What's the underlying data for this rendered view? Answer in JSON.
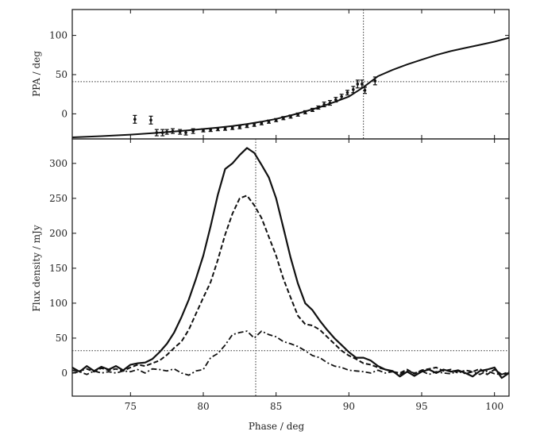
{
  "chart_data": [
    {
      "type": "scatter",
      "panel": "top",
      "xlabel": "",
      "ylabel": "PPA / deg",
      "xlim": [
        71,
        101
      ],
      "ylim": [
        -32,
        133
      ],
      "xticks": [
        75,
        80,
        85,
        90,
        95,
        100
      ],
      "yticks": [
        0,
        50,
        100
      ],
      "ytick_labels": [
        "0",
        "50",
        "100"
      ],
      "hline": 41,
      "vline": 91,
      "curve": {
        "name": "",
        "x": [
          71,
          73,
          75,
          77,
          79,
          81,
          82,
          83,
          84,
          85,
          86,
          87,
          88,
          89,
          90,
          91,
          92,
          93,
          94,
          95,
          96,
          97,
          98,
          99,
          100,
          101
        ],
        "y": [
          -30,
          -28.5,
          -26.5,
          -24,
          -21,
          -17.5,
          -15.5,
          -13,
          -10,
          -6.5,
          -2,
          3,
          8.5,
          15,
          22,
          34,
          48,
          56,
          63,
          69,
          75,
          80,
          84,
          88,
          92,
          97
        ]
      },
      "points": {
        "x": [
          75.3,
          76.4,
          76.8,
          77.2,
          77.5,
          77.9,
          78.4,
          78.8,
          79.3,
          80.0,
          80.5,
          81.0,
          81.5,
          82.0,
          82.5,
          83.0,
          83.5,
          84.0,
          84.5,
          85.0,
          85.5,
          86.0,
          86.5,
          87.0,
          87.5,
          87.9,
          88.3,
          88.7,
          89.1,
          89.5,
          89.9,
          90.3,
          90.6,
          90.9,
          91.1,
          91.8
        ],
        "y": [
          -7,
          -8,
          -24,
          -24,
          -23,
          -22,
          -23,
          -24,
          -22,
          -21,
          -20.5,
          -19.5,
          -19,
          -18,
          -17,
          -15.5,
          -14,
          -12,
          -10,
          -8,
          -5.5,
          -3.5,
          -1,
          2,
          5,
          8,
          12,
          14,
          18,
          22,
          27,
          31,
          38,
          38,
          30,
          42
        ],
        "yerr": [
          5,
          5,
          4,
          4,
          3,
          3,
          3,
          3,
          3,
          2,
          2,
          2,
          2,
          2,
          2,
          2,
          2,
          2,
          2,
          2,
          2,
          2,
          2,
          2,
          2,
          2,
          3,
          3,
          3,
          3,
          3,
          4,
          5,
          5,
          4,
          5
        ]
      }
    },
    {
      "type": "line",
      "panel": "bottom",
      "xlabel": "Phase / deg",
      "ylabel": "Flux density / mJy",
      "xlim": [
        71,
        101
      ],
      "ylim": [
        -33,
        335
      ],
      "xticks": [
        75,
        80,
        85,
        90,
        95,
        100
      ],
      "xtick_labels": [
        "75",
        "80",
        "85",
        "90",
        "95",
        "100"
      ],
      "yticks": [
        0,
        50,
        100,
        150,
        200,
        250,
        300
      ],
      "ytick_labels": [
        "0",
        "50",
        "100",
        "150",
        "200",
        "250",
        "300"
      ],
      "hline": 32,
      "vline": 83.6,
      "x": [
        71.0,
        71.5,
        72.0,
        72.5,
        73.0,
        73.5,
        74.0,
        74.5,
        75.0,
        75.5,
        76.0,
        76.5,
        77.0,
        77.5,
        78.0,
        78.5,
        79.0,
        79.5,
        80.0,
        80.5,
        81.0,
        81.5,
        82.0,
        82.5,
        83.0,
        83.5,
        84.0,
        84.5,
        85.0,
        85.5,
        86.0,
        86.5,
        87.0,
        87.5,
        88.0,
        88.5,
        89.0,
        89.5,
        90.0,
        90.5,
        91.0,
        91.5,
        92.0,
        92.5,
        93.0,
        93.5,
        94.0,
        94.5,
        95.0,
        95.5,
        96.0,
        96.5,
        97.0,
        97.5,
        98.0,
        98.5,
        99.0,
        99.5,
        100.0,
        100.5,
        101.0
      ],
      "series": [
        {
          "name": "",
          "style": "solid",
          "values": [
            8,
            2,
            10,
            3,
            9,
            5,
            10,
            4,
            12,
            14,
            15,
            20,
            30,
            42,
            58,
            80,
            105,
            135,
            168,
            210,
            255,
            292,
            300,
            312,
            322,
            315,
            298,
            280,
            250,
            208,
            165,
            128,
            100,
            90,
            75,
            62,
            50,
            40,
            30,
            22,
            22,
            18,
            10,
            5,
            3,
            -5,
            2,
            -4,
            2,
            5,
            0,
            5,
            2,
            4,
            0,
            -5,
            3,
            5,
            8,
            -7,
            0
          ]
        },
        {
          "name": "",
          "style": "dashed",
          "values": [
            4,
            3,
            6,
            2,
            7,
            4,
            6,
            3,
            8,
            12,
            10,
            14,
            18,
            26,
            36,
            45,
            62,
            85,
            108,
            130,
            162,
            198,
            228,
            250,
            254,
            240,
            222,
            195,
            168,
            135,
            108,
            82,
            70,
            68,
            62,
            52,
            42,
            32,
            25,
            20,
            14,
            12,
            8,
            5,
            2,
            0,
            5,
            -1,
            4,
            6,
            8,
            3,
            5,
            0,
            4,
            2,
            6,
            -2,
            5,
            -2,
            0
          ]
        },
        {
          "name": "",
          "style": "dashdot",
          "values": [
            0,
            2,
            -2,
            3,
            0,
            2,
            0,
            3,
            2,
            5,
            0,
            6,
            5,
            3,
            6,
            0,
            -3,
            3,
            5,
            22,
            28,
            40,
            55,
            58,
            60,
            50,
            60,
            55,
            52,
            45,
            42,
            38,
            32,
            25,
            22,
            15,
            10,
            8,
            4,
            3,
            2,
            0,
            4,
            0,
            2,
            -2,
            3,
            0,
            3,
            -2,
            2,
            0,
            -1,
            3,
            -1,
            2,
            -2,
            3,
            -1,
            -2,
            2
          ]
        }
      ]
    }
  ]
}
